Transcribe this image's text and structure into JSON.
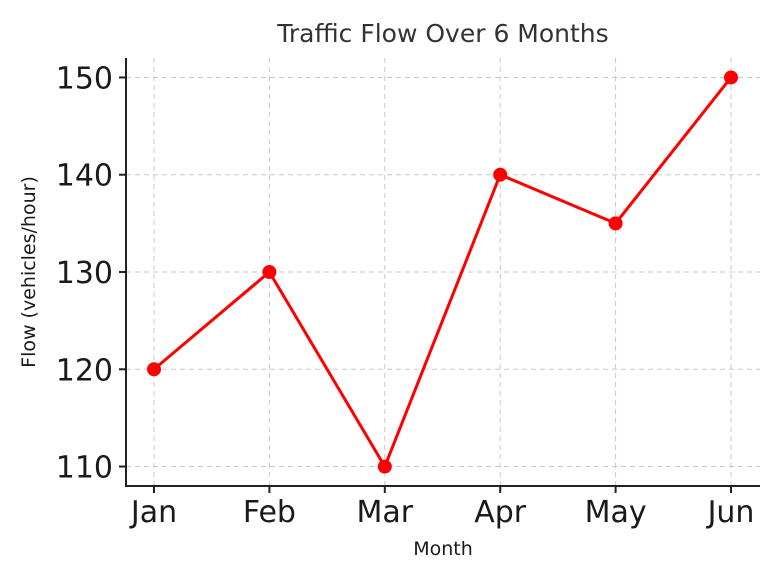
{
  "chart_data": {
    "type": "line",
    "title": "Traffic Flow Over 6 Months",
    "xlabel": "Month",
    "ylabel": "Flow (vehicles/hour)",
    "categories": [
      "Jan",
      "Feb",
      "Mar",
      "Apr",
      "May",
      "Jun"
    ],
    "series": [
      {
        "values": [
          120,
          130,
          110,
          140,
          135,
          150
        ],
        "color": "#ff0000",
        "marker": "circle"
      }
    ],
    "yticks": [
      110,
      120,
      130,
      140,
      150
    ],
    "ylim": [
      108,
      152
    ],
    "grid": true,
    "legend": "none"
  }
}
